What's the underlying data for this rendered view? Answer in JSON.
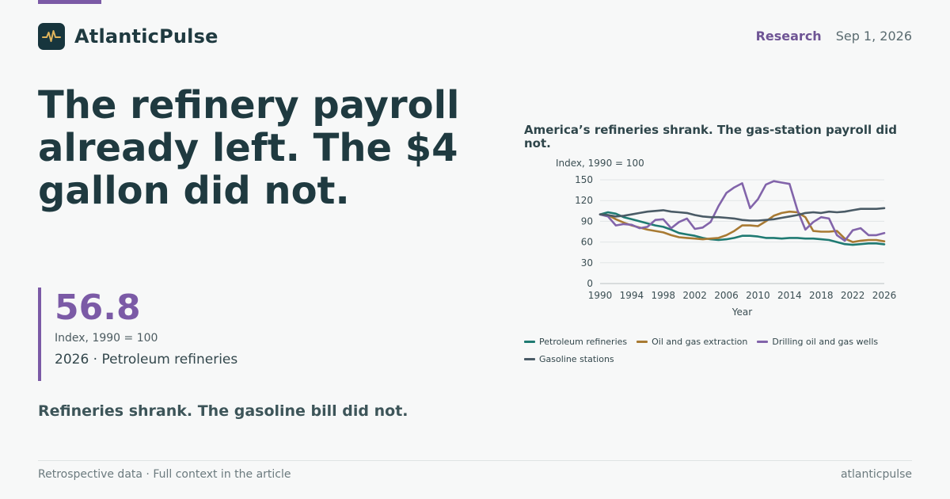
{
  "brand": {
    "name": "AtlanticPulse",
    "logo_icon": "pulse-icon"
  },
  "header": {
    "section": "Research",
    "date": "Sep 1, 2026"
  },
  "headline": "The refinery payroll already left. The $4 gallon did not.",
  "kpi": {
    "value": "56.8",
    "unit": "Index, 1990 = 100",
    "caption": "2026 · Petroleum refineries"
  },
  "subhead": "Refineries shrank. The gasoline bill did not.",
  "footer": {
    "left": "Retrospective data · Full context in the article",
    "right": "atlanticpulse"
  },
  "colors": {
    "accent": "#7b5aa6",
    "background": "#f7f8f8",
    "text": "#1f3a40"
  },
  "chart_data": {
    "type": "line",
    "title": "America’s refineries shrank. The gas-station payroll did not.",
    "ylabel": "Index, 1990 = 100",
    "xlabel": "Year",
    "xlim": [
      1990,
      2026
    ],
    "ylim": [
      0,
      150
    ],
    "xticks": [
      1990,
      1994,
      1998,
      2002,
      2006,
      2010,
      2014,
      2018,
      2022,
      2026
    ],
    "yticks": [
      0,
      30,
      60,
      90,
      120,
      150
    ],
    "grid": true,
    "legend_position": "bottom",
    "x": [
      1990,
      1991,
      1992,
      1993,
      1994,
      1995,
      1996,
      1997,
      1998,
      1999,
      2000,
      2001,
      2002,
      2003,
      2004,
      2005,
      2006,
      2007,
      2008,
      2009,
      2010,
      2011,
      2012,
      2013,
      2014,
      2015,
      2016,
      2017,
      2018,
      2019,
      2020,
      2021,
      2022,
      2023,
      2024,
      2025,
      2026
    ],
    "series": [
      {
        "name": "Petroleum refineries",
        "color": "#1f7a72",
        "values": [
          100,
          103,
          101,
          96,
          93,
          90,
          87,
          84,
          82,
          78,
          73,
          71,
          69,
          66,
          64,
          63,
          64,
          66,
          69,
          69,
          68,
          66,
          66,
          65,
          66,
          66,
          65,
          65,
          64,
          63,
          60,
          57,
          56,
          57,
          58,
          58,
          56.8
        ]
      },
      {
        "name": "Oil and gas extraction",
        "color": "#a87a33",
        "values": [
          100,
          99,
          93,
          88,
          84,
          81,
          78,
          76,
          74,
          70,
          67,
          66,
          65,
          64,
          65,
          66,
          70,
          76,
          84,
          84,
          83,
          90,
          98,
          102,
          104,
          103,
          96,
          76,
          75,
          75,
          76,
          65,
          60,
          62,
          63,
          63,
          61
        ]
      },
      {
        "name": "Drilling oil and gas wells",
        "color": "#8264aa",
        "values": [
          100,
          97,
          84,
          86,
          85,
          80,
          82,
          92,
          93,
          80,
          89,
          94,
          79,
          81,
          89,
          112,
          131,
          139,
          145,
          109,
          122,
          143,
          148,
          146,
          144,
          106,
          78,
          89,
          96,
          94,
          70,
          62,
          77,
          80,
          70,
          70,
          73
        ]
      },
      {
        "name": "Gasoline stations",
        "color": "#4a5b66",
        "values": [
          100,
          99,
          97,
          98,
          100,
          102,
          104,
          105,
          106,
          104,
          103,
          102,
          99,
          97,
          96,
          96,
          95,
          94,
          92,
          91,
          91,
          92,
          93,
          95,
          97,
          99,
          102,
          103,
          102,
          104,
          103,
          104,
          106,
          108,
          108,
          108,
          109
        ]
      }
    ]
  }
}
